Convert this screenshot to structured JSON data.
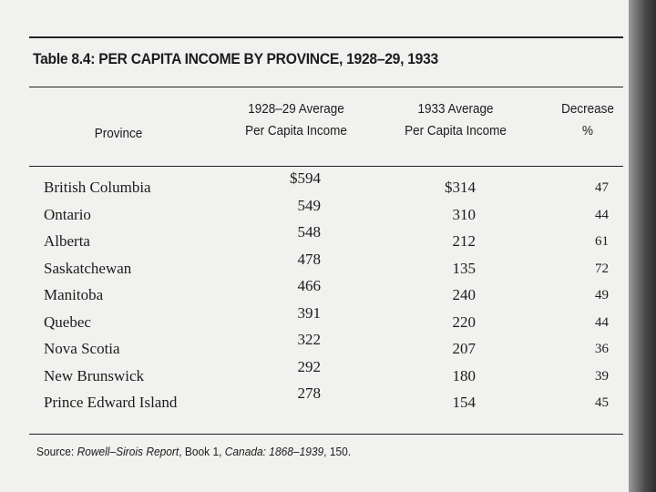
{
  "table": {
    "title": "Table 8.4: PER CAPITA INCOME BY PROVINCE, 1928–29, 1933",
    "header": [
      [
        "Province"
      ],
      [
        "1928–29 Average",
        "Per Capita Income"
      ],
      [
        "1933 Average",
        "Per Capita Income"
      ],
      [
        "Decrease",
        "%"
      ]
    ],
    "rows": [
      [
        "British Columbia",
        "$594",
        "$314",
        "47"
      ],
      [
        "Ontario",
        "549",
        "310",
        "44"
      ],
      [
        "Alberta",
        "548",
        "212",
        "61"
      ],
      [
        "Saskatchewan",
        "478",
        "135",
        "72"
      ],
      [
        "Manitoba",
        "466",
        "240",
        "49"
      ],
      [
        "Quebec",
        "391",
        "220",
        "44"
      ],
      [
        "Nova Scotia",
        "322",
        "207",
        "36"
      ],
      [
        "New Brunswick",
        "292",
        "180",
        "39"
      ],
      [
        "Prince Edward Island",
        "278",
        "154",
        "45"
      ]
    ],
    "source": [
      "Source:",
      "Rowell–Sirois Report",
      ", Book 1, ",
      "Canada: 1868–1939",
      ", 150."
    ]
  }
}
